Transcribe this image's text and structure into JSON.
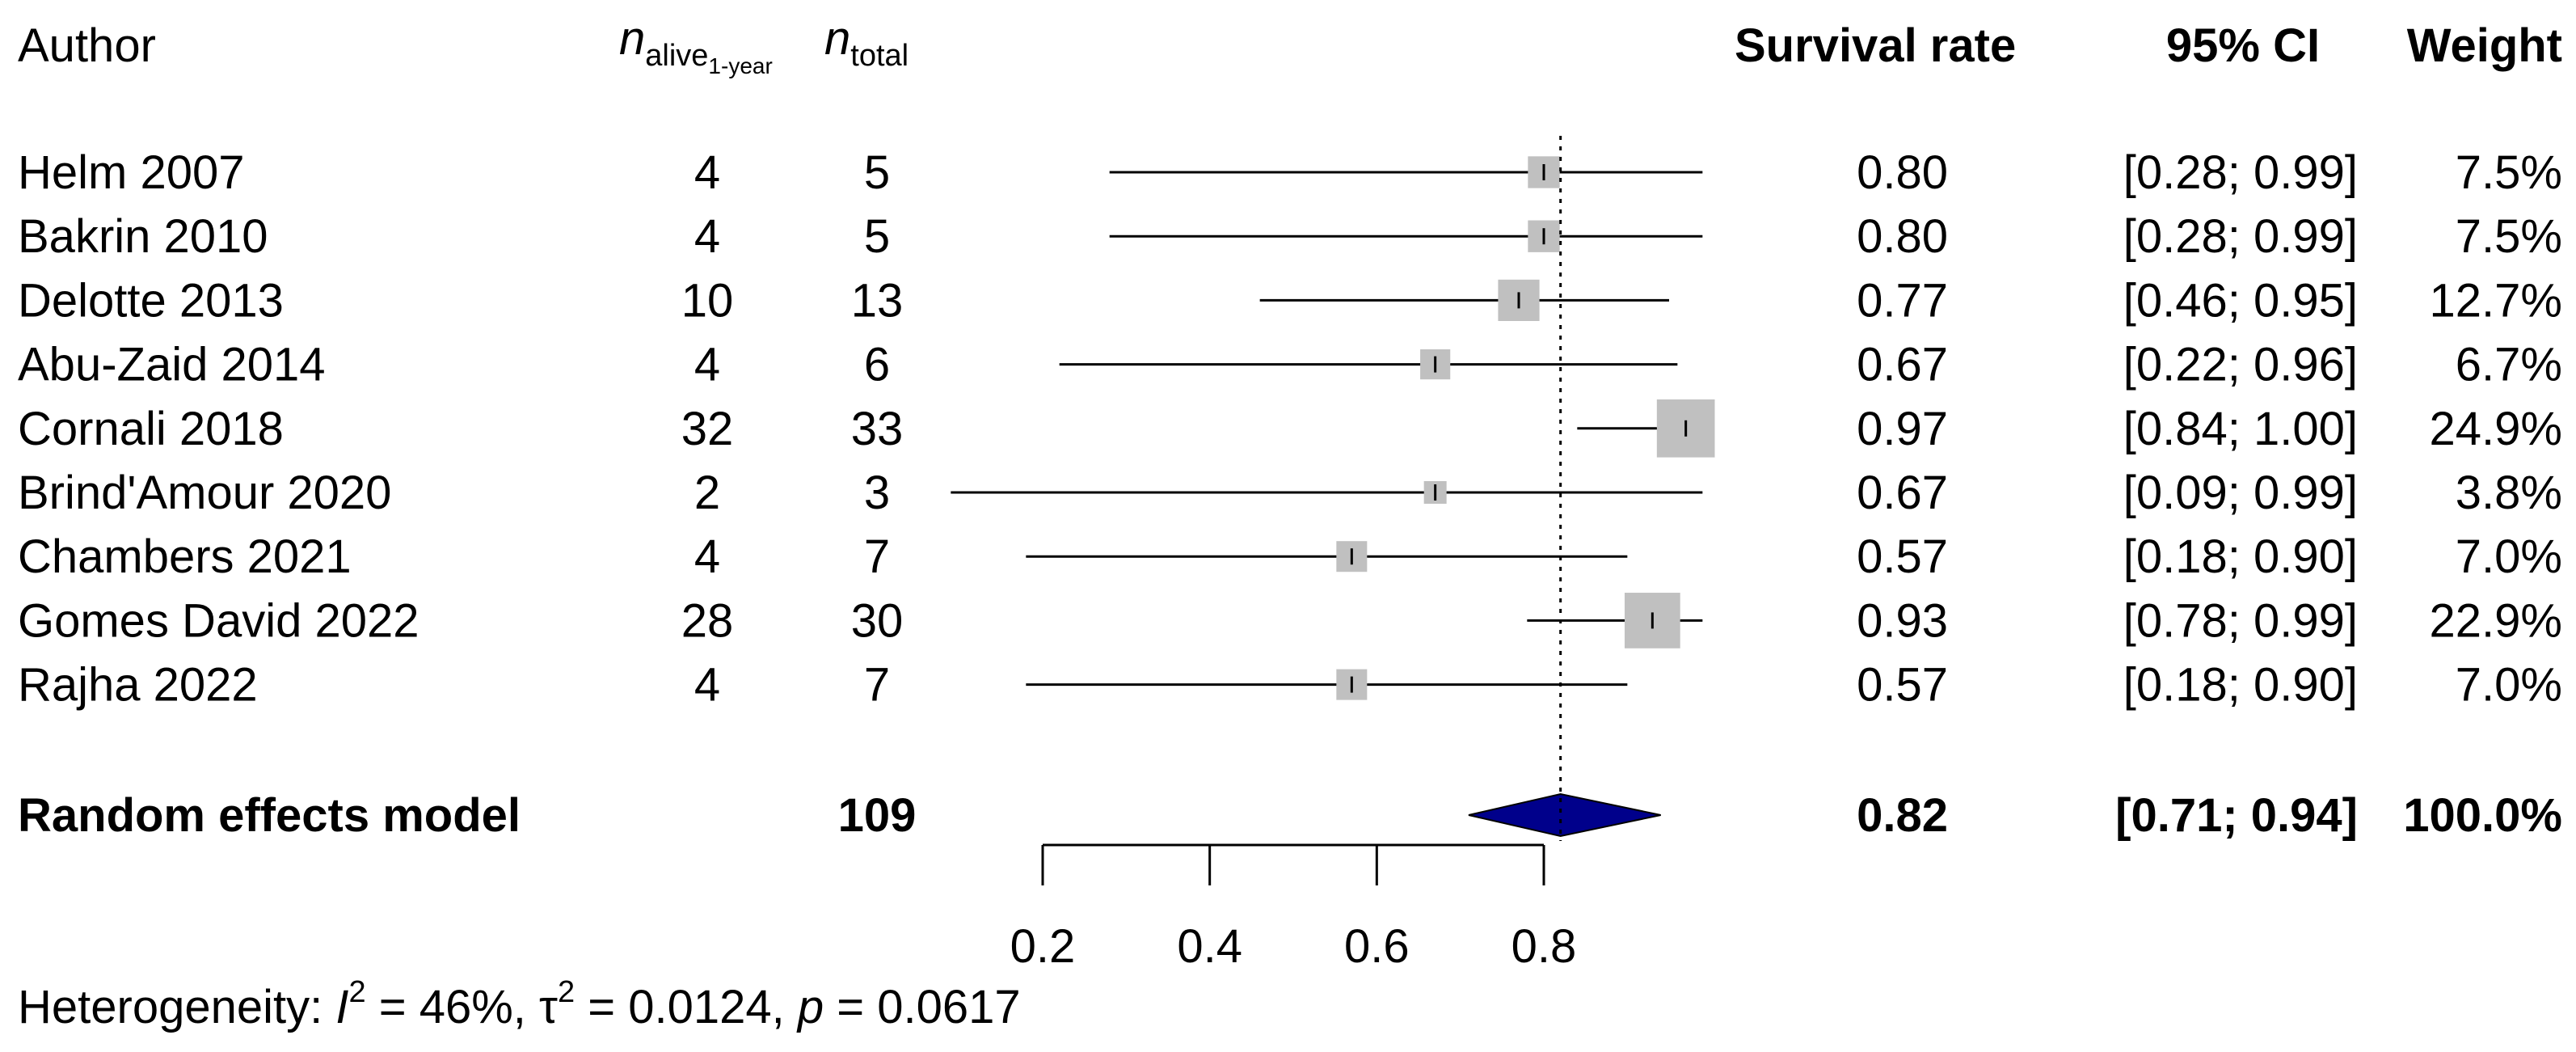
{
  "chart_data": {
    "type": "forest",
    "columns": {
      "author": "Author",
      "n_event_base": "n",
      "n_event_sub": "alive",
      "n_event_subsub": "1-year",
      "n_total_base": "n",
      "n_total_sub": "total",
      "estimate": "Survival rate",
      "ci": "95% CI",
      "weight": "Weight"
    },
    "studies": [
      {
        "author": "Helm 2007",
        "events": "4",
        "total": "5",
        "est": 0.8,
        "lo": 0.28,
        "hi": 0.99,
        "est_text": "0.80",
        "ci_text": "[0.28; 0.99]",
        "weight_text": "7.5%",
        "weight": 7.5
      },
      {
        "author": "Bakrin 2010",
        "events": "4",
        "total": "5",
        "est": 0.8,
        "lo": 0.28,
        "hi": 0.99,
        "est_text": "0.80",
        "ci_text": "[0.28; 0.99]",
        "weight_text": "7.5%",
        "weight": 7.5
      },
      {
        "author": "Delotte 2013",
        "events": "10",
        "total": "13",
        "est": 0.77,
        "lo": 0.46,
        "hi": 0.95,
        "est_text": "0.77",
        "ci_text": "[0.46; 0.95]",
        "weight_text": "12.7%",
        "weight": 12.7
      },
      {
        "author": "Abu-Zaid 2014",
        "events": "4",
        "total": "6",
        "est": 0.67,
        "lo": 0.22,
        "hi": 0.96,
        "est_text": "0.67",
        "ci_text": "[0.22; 0.96]",
        "weight_text": "6.7%",
        "weight": 6.7
      },
      {
        "author": "Cornali 2018",
        "events": "32",
        "total": "33",
        "est": 0.97,
        "lo": 0.84,
        "hi": 1.0,
        "est_text": "0.97",
        "ci_text": "[0.84; 1.00]",
        "weight_text": "24.9%",
        "weight": 24.9
      },
      {
        "author": "Brind'Amour 2020",
        "events": "2",
        "total": "3",
        "est": 0.67,
        "lo": 0.09,
        "hi": 0.99,
        "est_text": "0.67",
        "ci_text": "[0.09; 0.99]",
        "weight_text": "3.8%",
        "weight": 3.8
      },
      {
        "author": "Chambers 2021",
        "events": "4",
        "total": "7",
        "est": 0.57,
        "lo": 0.18,
        "hi": 0.9,
        "est_text": "0.57",
        "ci_text": "[0.18; 0.90]",
        "weight_text": "7.0%",
        "weight": 7.0
      },
      {
        "author": "Gomes David 2022",
        "events": "28",
        "total": "30",
        "est": 0.93,
        "lo": 0.78,
        "hi": 0.99,
        "est_text": "0.93",
        "ci_text": "[0.78; 0.99]",
        "weight_text": "22.9%",
        "weight": 22.9
      },
      {
        "author": "Rajha 2022",
        "events": "4",
        "total": "7",
        "est": 0.57,
        "lo": 0.18,
        "hi": 0.9,
        "est_text": "0.57",
        "ci_text": "[0.18; 0.90]",
        "weight_text": "7.0%",
        "weight": 7.0
      }
    ],
    "pooled": {
      "label": "Random effects model",
      "total": "109",
      "est": 0.82,
      "lo": 0.71,
      "hi": 0.94,
      "est_text": "0.82",
      "ci_text": "[0.71; 0.94]",
      "weight_text": "100.0%"
    },
    "xaxis": {
      "ticks": [
        0.2,
        0.4,
        0.6,
        0.8
      ],
      "tick_labels": [
        "0.2",
        "0.4",
        "0.6",
        "0.8"
      ],
      "range": [
        0.2,
        0.8
      ],
      "domain": [
        0.2,
        0.8
      ]
    },
    "heterogeneity": {
      "prefix": "Heterogeneity: ",
      "i2_symbol": "I",
      "i2_sup": "2",
      "i2_value": " = 46%, ",
      "tau2_symbol": "τ",
      "tau2_sup": "2",
      "tau2_value": " = 0.0124, ",
      "p_symbol": "p",
      "p_value": " = 0.0617"
    },
    "colors": {
      "square": "#c0c0c0",
      "diamond": "#00008b",
      "line": "#000000"
    }
  }
}
